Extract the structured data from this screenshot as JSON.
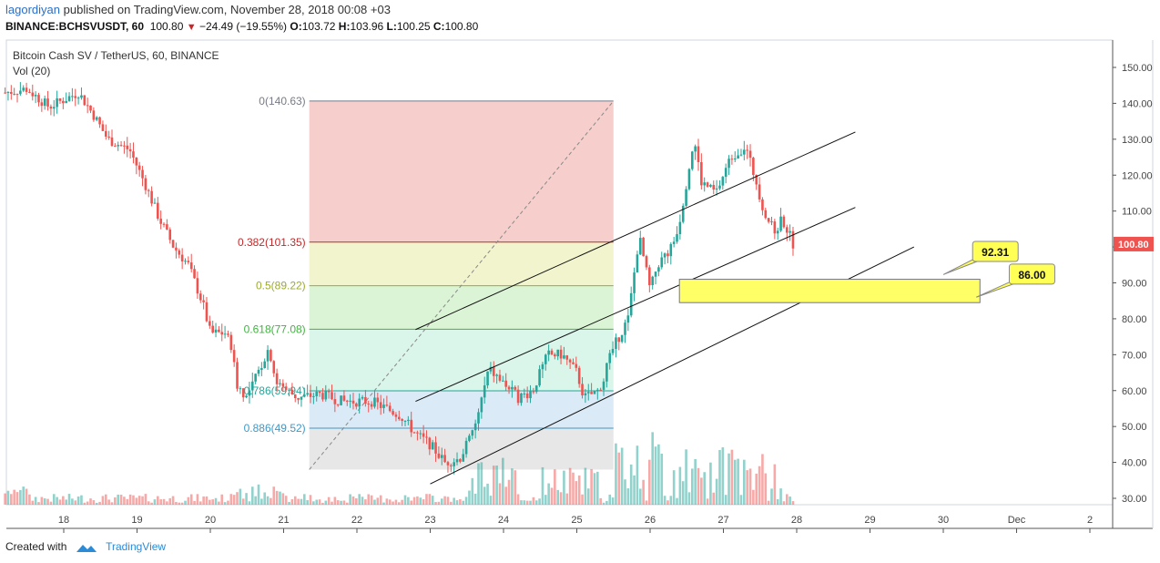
{
  "header": {
    "author": "lagordiyan",
    "published_text": "published on TradingView.com, November 28, 2018 00:08 +03",
    "symbol": "BINANCE:BCHSVUSDT, 60",
    "last": "100.80",
    "change": "−24.49 (−19.55%)",
    "o_label": "O:",
    "o": "103.72",
    "h_label": "H:",
    "h": "103.96",
    "l_label": "L:",
    "l": "100.25",
    "c_label": "C:",
    "c": "100.80"
  },
  "footer": {
    "created_with": "Created with",
    "brand": "TradingView"
  },
  "colors": {
    "up": "#26a69a",
    "down": "#ef5350",
    "price_tag": "#ef5350",
    "zone": "#ffff66",
    "callout": "#ffff55"
  },
  "chart_data": {
    "type": "candlestick",
    "title": "Bitcoin Cash SV / TetherUS, 60, BINANCE",
    "volume_label": "Vol (20)",
    "y_ticks": [
      "150.00",
      "140.00",
      "130.00",
      "120.00",
      "110.00",
      "100.00",
      "90.00",
      "80.00",
      "70.00",
      "60.00",
      "50.00",
      "40.00",
      "30.00"
    ],
    "y_range": [
      26,
      155
    ],
    "x_ticks": [
      "18",
      "19",
      "20",
      "21",
      "22",
      "23",
      "24",
      "25",
      "26",
      "27",
      "28",
      "29",
      "30",
      "Dec",
      "2"
    ],
    "x_range_days": [
      17.2,
      2.4
    ],
    "last_price_tag": "100.80",
    "last_price": 100.8,
    "price_path": [
      {
        "d": 17.2,
        "p": 143
      },
      {
        "d": 17.5,
        "p": 144
      },
      {
        "d": 17.8,
        "p": 139
      },
      {
        "d": 18.2,
        "p": 143
      },
      {
        "d": 18.4,
        "p": 137
      },
      {
        "d": 18.6,
        "p": 130
      },
      {
        "d": 18.9,
        "p": 127
      },
      {
        "d": 19.1,
        "p": 118
      },
      {
        "d": 19.3,
        "p": 108
      },
      {
        "d": 19.5,
        "p": 100
      },
      {
        "d": 19.7,
        "p": 95
      },
      {
        "d": 19.9,
        "p": 84
      },
      {
        "d": 20.0,
        "p": 76
      },
      {
        "d": 20.2,
        "p": 76
      },
      {
        "d": 20.3,
        "p": 72
      },
      {
        "d": 20.35,
        "p": 62
      },
      {
        "d": 20.5,
        "p": 58
      },
      {
        "d": 20.8,
        "p": 72
      },
      {
        "d": 20.9,
        "p": 62
      },
      {
        "d": 21.2,
        "p": 58
      },
      {
        "d": 21.5,
        "p": 59
      },
      {
        "d": 21.8,
        "p": 57
      },
      {
        "d": 22.2,
        "p": 57
      },
      {
        "d": 22.6,
        "p": 53
      },
      {
        "d": 22.8,
        "p": 48
      },
      {
        "d": 23.0,
        "p": 45
      },
      {
        "d": 23.2,
        "p": 40
      },
      {
        "d": 23.4,
        "p": 41
      },
      {
        "d": 23.6,
        "p": 49
      },
      {
        "d": 23.8,
        "p": 66
      },
      {
        "d": 24.0,
        "p": 62
      },
      {
        "d": 24.2,
        "p": 58
      },
      {
        "d": 24.4,
        "p": 60
      },
      {
        "d": 24.6,
        "p": 70
      },
      {
        "d": 24.8,
        "p": 70
      },
      {
        "d": 25.0,
        "p": 65
      },
      {
        "d": 25.1,
        "p": 58
      },
      {
        "d": 25.3,
        "p": 60
      },
      {
        "d": 25.5,
        "p": 72
      },
      {
        "d": 25.7,
        "p": 80
      },
      {
        "d": 25.85,
        "p": 103
      },
      {
        "d": 26.0,
        "p": 88
      },
      {
        "d": 26.1,
        "p": 95
      },
      {
        "d": 26.3,
        "p": 100
      },
      {
        "d": 26.4,
        "p": 107
      },
      {
        "d": 26.6,
        "p": 130
      },
      {
        "d": 26.7,
        "p": 118
      },
      {
        "d": 26.9,
        "p": 115
      },
      {
        "d": 27.1,
        "p": 125
      },
      {
        "d": 27.3,
        "p": 128
      },
      {
        "d": 27.45,
        "p": 118
      },
      {
        "d": 27.55,
        "p": 110
      },
      {
        "d": 27.7,
        "p": 104
      },
      {
        "d": 27.8,
        "p": 108
      },
      {
        "d": 27.95,
        "p": 101
      }
    ],
    "fibonacci": [
      {
        "label": "0(140.63)",
        "value": 140.63,
        "color": "#787b86",
        "fill": "#f4c7c3"
      },
      {
        "label": "0.382(101.35)",
        "value": 101.35,
        "color": "#c62828",
        "fill": "#eef2c4"
      },
      {
        "label": "0.5(89.22)",
        "value": 89.22,
        "color": "#9eab2c",
        "fill": "#d6f2cf"
      },
      {
        "label": "0.618(77.08)",
        "value": 77.08,
        "color": "#43b243",
        "fill": "#d3f3e6"
      },
      {
        "label": "0.786(59.94)",
        "value": 59.94,
        "color": "#26a69a",
        "fill": "#d4e6f5"
      },
      {
        "label": "0.886(49.52)",
        "value": 49.52,
        "color": "#3d99c9",
        "fill": "#e3e3e3"
      }
    ],
    "fib_days": [
      21.35,
      25.5
    ],
    "fib_bottom": 38,
    "trend_diag": [
      {
        "d": 21.35,
        "p": 38
      },
      {
        "d": 25.5,
        "p": 140.63
      }
    ],
    "channel_lines": [
      [
        {
          "d": 22.8,
          "p": 77
        },
        {
          "d": 28.8,
          "p": 132
        }
      ],
      [
        {
          "d": 22.8,
          "p": 57
        },
        {
          "d": 28.8,
          "p": 111
        }
      ],
      [
        {
          "d": 23.0,
          "p": 34
        },
        {
          "d": 29.6,
          "p": 100
        }
      ]
    ],
    "target_zone": {
      "d1": 26.4,
      "d2": 30.5,
      "top": 91,
      "bottom": 84.5
    },
    "callouts": [
      {
        "text": "92.31",
        "d": 30.4,
        "p": 98.5,
        "anchor_d": 30.0,
        "anchor_p": 92.31
      },
      {
        "text": "86.00",
        "d": 30.9,
        "p": 92.2,
        "anchor_d": 30.45,
        "anchor_p": 86.0
      }
    ]
  }
}
